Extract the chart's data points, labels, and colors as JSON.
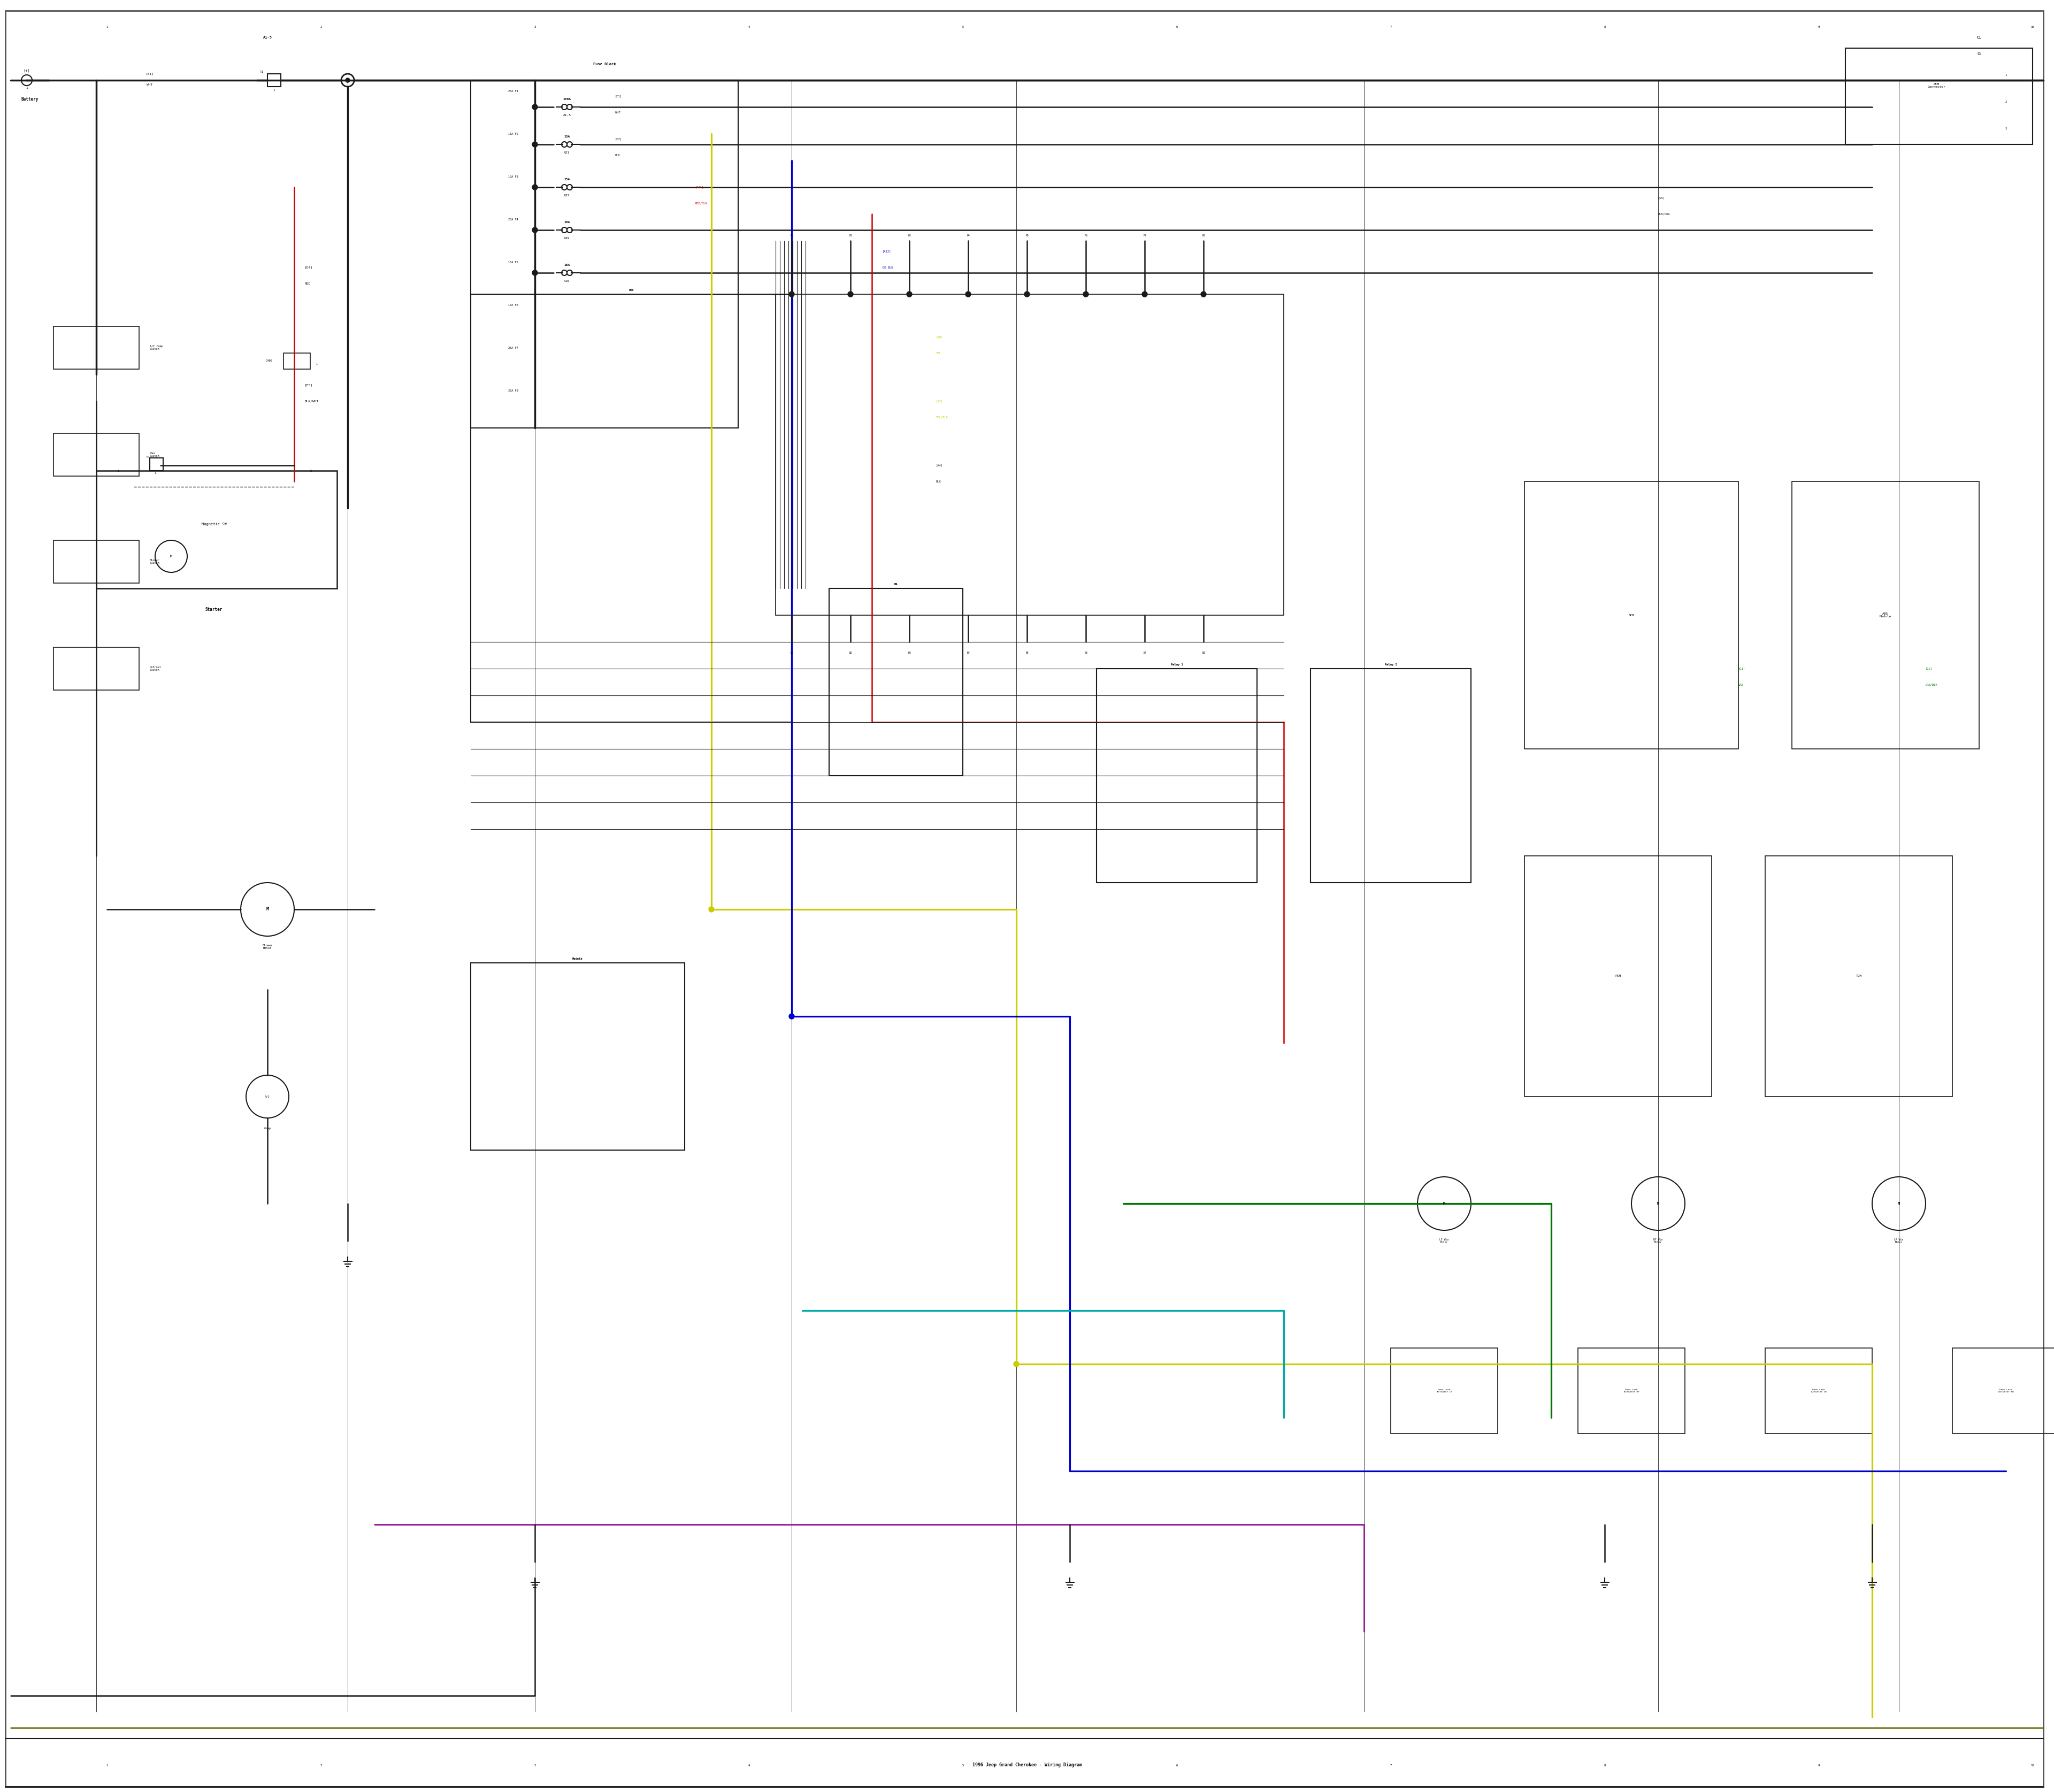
{
  "title": "1996 Jeep Grand Cherokee Wiring Diagram",
  "bg_color": "#ffffff",
  "wire_black": "#1a1a1a",
  "wire_red": "#cc0000",
  "wire_blue": "#0000cc",
  "wire_yellow": "#cccc00",
  "wire_green": "#007700",
  "wire_cyan": "#00aaaa",
  "wire_purple": "#880088",
  "wire_gray": "#555555",
  "border_color": "#333333",
  "text_color": "#000000",
  "lw_main": 2.5,
  "lw_wire": 1.8,
  "lw_thin": 1.2,
  "fig_width": 38.4,
  "fig_height": 33.5
}
